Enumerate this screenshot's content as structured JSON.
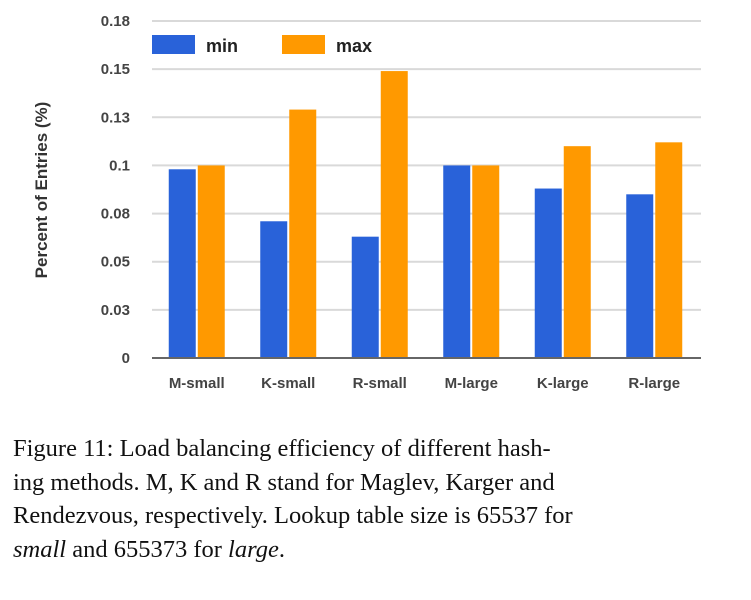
{
  "chart_data": {
    "type": "bar",
    "title": "",
    "xlabel": "",
    "ylabel": "Percent of Entries (%)",
    "ylim": [
      0,
      0.175
    ],
    "yticks": [
      0,
      0.025,
      0.05,
      0.075,
      0.1,
      0.125,
      0.15,
      0.175
    ],
    "ytick_labels": [
      "0",
      "0.03",
      "0.05",
      "0.08",
      "0.1",
      "0.13",
      "0.15",
      "0.18"
    ],
    "grid": true,
    "legend_position": "top-left",
    "categories": [
      "M-small",
      "K-small",
      "R-small",
      "M-large",
      "K-large",
      "R-large"
    ],
    "series": [
      {
        "name": "min",
        "color": "#2962d9",
        "values": [
          0.098,
          0.071,
          0.063,
          0.1,
          0.088,
          0.085
        ]
      },
      {
        "name": "max",
        "color": "#ff9900",
        "values": [
          0.1,
          0.129,
          0.149,
          0.1,
          0.11,
          0.112
        ]
      }
    ]
  },
  "caption": {
    "line1": "Figure 11: Load balancing efficiency of different hash-",
    "line2": "ing methods.  M, K and R stand for Maglev, Karger and",
    "line3": "Rendezvous, respectively. Lookup table size is 65537 for",
    "line4_italic_1": "small",
    "line4_mid": " and 655373 for ",
    "line4_italic_2": "large",
    "line4_end": "."
  }
}
